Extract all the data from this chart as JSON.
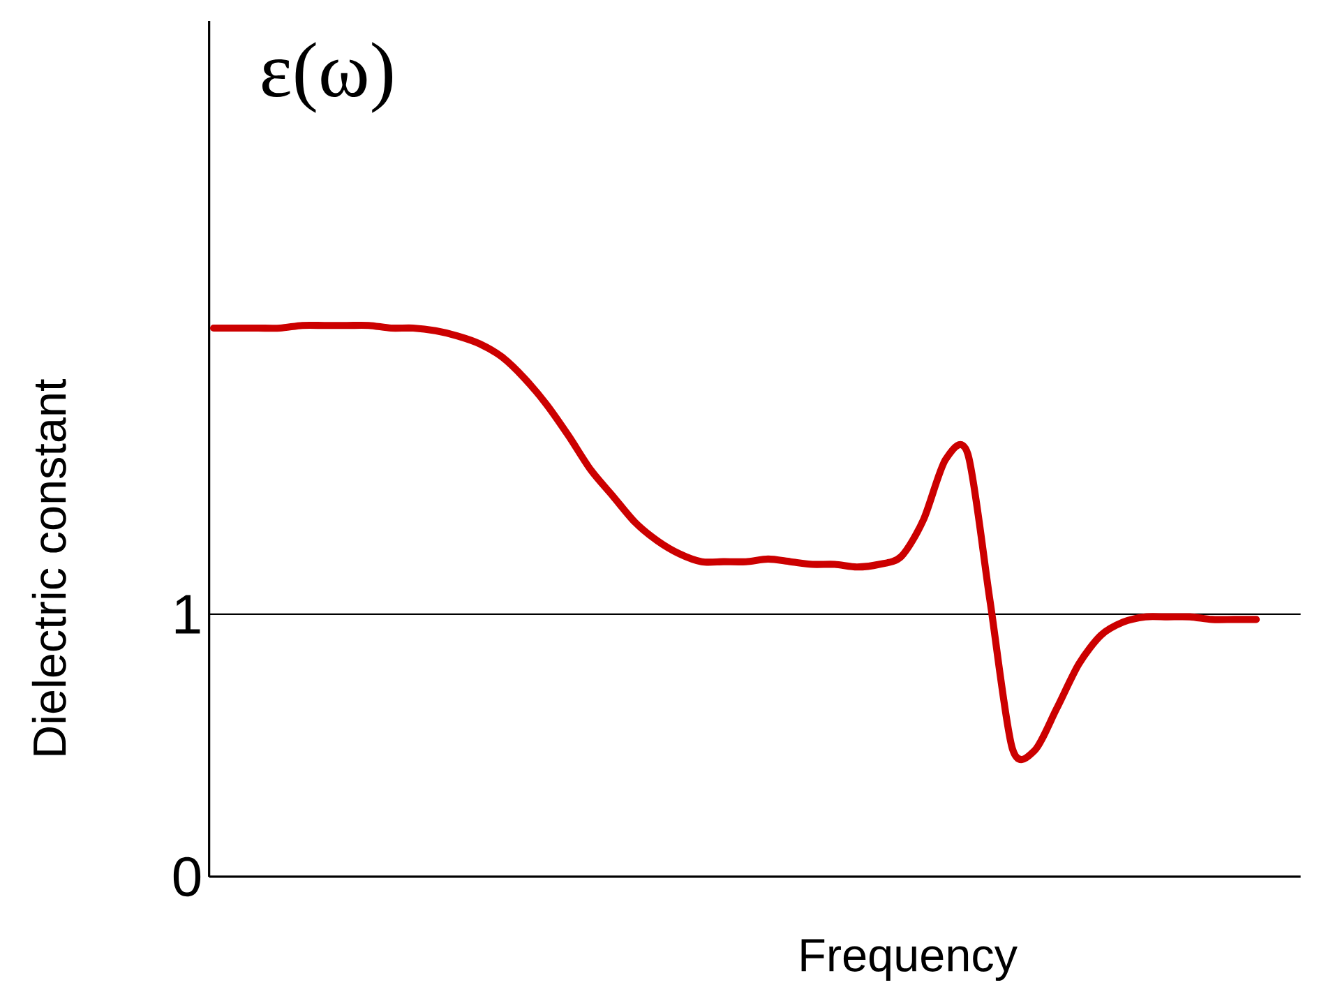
{
  "chart_data": {
    "type": "line",
    "title": "ε(ω)",
    "xlabel": "Frequency",
    "ylabel": "Dielectric constant",
    "categories": [
      null,
      null,
      null,
      null,
      null,
      null,
      null,
      null,
      null,
      null,
      null,
      null,
      null,
      null,
      null,
      null,
      null,
      null,
      null,
      null,
      null,
      null,
      null,
      null,
      null,
      null,
      null,
      null,
      null,
      null,
      null,
      null,
      null,
      null,
      null,
      null,
      null,
      null,
      null,
      null,
      null,
      null,
      null,
      null,
      null,
      null,
      null,
      null
    ],
    "values": [
      2.09,
      2.09,
      2.09,
      2.09,
      2.1,
      2.1,
      2.1,
      2.1,
      2.09,
      2.09,
      2.08,
      2.06,
      2.03,
      1.98,
      1.9,
      1.8,
      1.68,
      1.55,
      1.45,
      1.35,
      1.28,
      1.23,
      1.2,
      1.2,
      1.2,
      1.21,
      1.2,
      1.19,
      1.19,
      1.18,
      1.19,
      1.22,
      1.36,
      1.59,
      1.61,
      1.05,
      0.49,
      0.48,
      0.64,
      0.81,
      0.92,
      0.97,
      0.99,
      0.99,
      0.99,
      0.98,
      0.98,
      0.98
    ],
    "color": "#cc0000",
    "ylim": [
      0,
      3.26
    ],
    "yticks": [
      0,
      1
    ],
    "ref_lines": [
      {
        "axis": "y",
        "value": 1,
        "color": "#000000"
      }
    ]
  }
}
